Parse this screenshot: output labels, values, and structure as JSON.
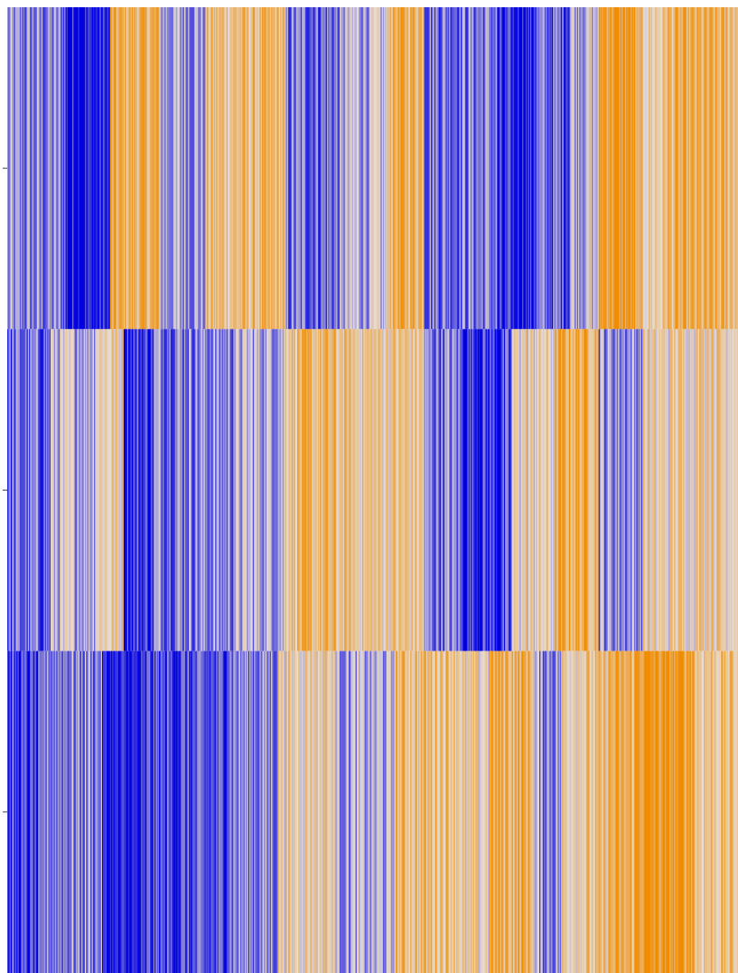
{
  "chart_data": {
    "type": "heatmap",
    "rows": 3,
    "value_range": [
      -1,
      1
    ],
    "colorscale": [
      {
        "value": -1,
        "color": "#0000e0"
      },
      {
        "value": 0,
        "color": "#e6ddd6"
      },
      {
        "value": 1,
        "color": "#f08c00"
      }
    ],
    "grid": false,
    "series": [
      {
        "segments": [
          {
            "from": 0.0,
            "to": 0.08,
            "level": -0.45
          },
          {
            "from": 0.08,
            "to": 0.14,
            "level": -0.9
          },
          {
            "from": 0.14,
            "to": 0.21,
            "level": 0.55
          },
          {
            "from": 0.21,
            "to": 0.27,
            "level": -0.3
          },
          {
            "from": 0.27,
            "to": 0.38,
            "level": 0.4
          },
          {
            "from": 0.38,
            "to": 0.46,
            "level": -0.5
          },
          {
            "from": 0.46,
            "to": 0.52,
            "level": -0.2
          },
          {
            "from": 0.52,
            "to": 0.57,
            "level": 0.6
          },
          {
            "from": 0.57,
            "to": 0.67,
            "level": -0.45
          },
          {
            "from": 0.67,
            "to": 0.72,
            "level": -0.9
          },
          {
            "from": 0.72,
            "to": 0.77,
            "level": -0.55
          },
          {
            "from": 0.77,
            "to": 0.81,
            "level": -0.15
          },
          {
            "from": 0.81,
            "to": 0.86,
            "level": 0.85
          },
          {
            "from": 0.86,
            "to": 0.9,
            "level": 0.25
          },
          {
            "from": 0.9,
            "to": 1.0,
            "level": 0.5
          }
        ]
      },
      {
        "segments": [
          {
            "from": 0.0,
            "to": 0.06,
            "level": -0.55
          },
          {
            "from": 0.06,
            "to": 0.12,
            "level": -0.15
          },
          {
            "from": 0.12,
            "to": 0.16,
            "level": 0.2
          },
          {
            "from": 0.16,
            "to": 0.2,
            "level": -0.75
          },
          {
            "from": 0.2,
            "to": 0.31,
            "level": -0.4
          },
          {
            "from": 0.31,
            "to": 0.38,
            "level": -0.2
          },
          {
            "from": 0.38,
            "to": 0.45,
            "level": 0.45
          },
          {
            "from": 0.45,
            "to": 0.57,
            "level": 0.3
          },
          {
            "from": 0.57,
            "to": 0.62,
            "level": -0.45
          },
          {
            "from": 0.62,
            "to": 0.69,
            "level": -0.75
          },
          {
            "from": 0.69,
            "to": 0.75,
            "level": 0.1
          },
          {
            "from": 0.75,
            "to": 0.81,
            "level": 0.6
          },
          {
            "from": 0.81,
            "to": 0.87,
            "level": -0.35
          },
          {
            "from": 0.87,
            "to": 0.91,
            "level": 0.15
          },
          {
            "from": 0.91,
            "to": 1.0,
            "level": 0.25
          }
        ]
      },
      {
        "segments": [
          {
            "from": 0.0,
            "to": 0.05,
            "level": -0.8
          },
          {
            "from": 0.05,
            "to": 0.13,
            "level": -0.4
          },
          {
            "from": 0.13,
            "to": 0.19,
            "level": -0.95
          },
          {
            "from": 0.19,
            "to": 0.3,
            "level": -0.7
          },
          {
            "from": 0.3,
            "to": 0.37,
            "level": -0.4
          },
          {
            "from": 0.37,
            "to": 0.45,
            "level": 0.2
          },
          {
            "from": 0.45,
            "to": 0.53,
            "level": -0.25
          },
          {
            "from": 0.53,
            "to": 0.62,
            "level": 0.45
          },
          {
            "from": 0.62,
            "to": 0.66,
            "level": 0.15
          },
          {
            "from": 0.66,
            "to": 0.72,
            "level": 0.6
          },
          {
            "from": 0.72,
            "to": 0.76,
            "level": -0.35
          },
          {
            "from": 0.76,
            "to": 0.82,
            "level": 0.3
          },
          {
            "from": 0.82,
            "to": 0.86,
            "level": 0.55
          },
          {
            "from": 0.86,
            "to": 0.94,
            "level": 0.85
          },
          {
            "from": 0.94,
            "to": 1.0,
            "level": 0.35
          }
        ]
      }
    ]
  }
}
